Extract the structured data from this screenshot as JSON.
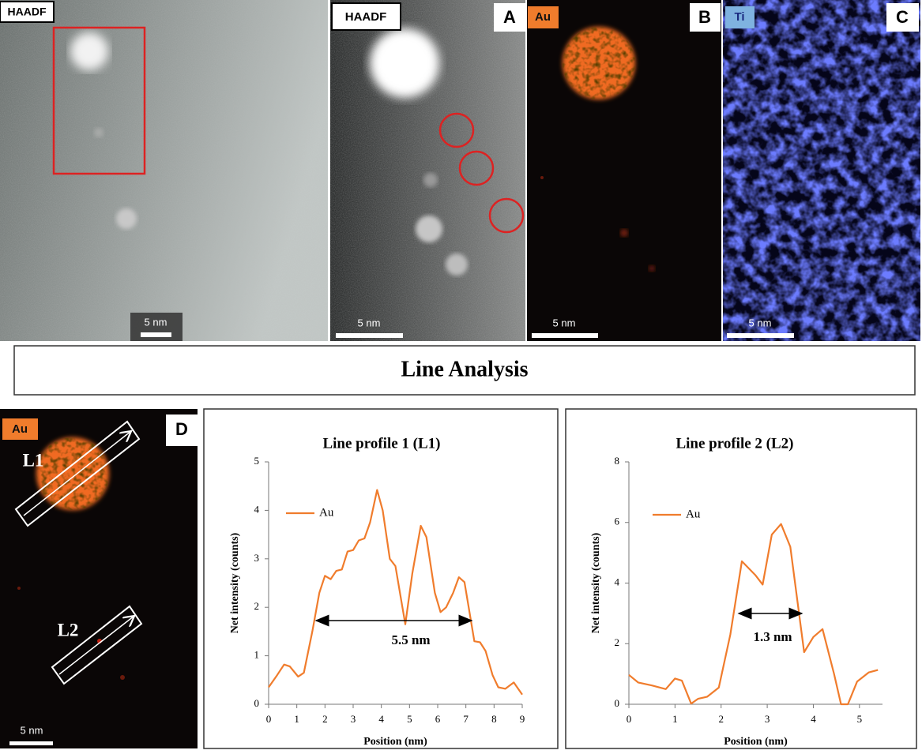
{
  "panels": {
    "overview": {
      "label": "HAADF",
      "scale_bar": "5 nm"
    },
    "a": {
      "letter": "A",
      "label": "HAADF",
      "scale_bar": "5 nm"
    },
    "b": {
      "letter": "B",
      "label": "Au",
      "scale_bar": "5 nm"
    },
    "c": {
      "letter": "C",
      "label": "Ti",
      "scale_bar": "5 nm"
    },
    "d": {
      "letter": "D",
      "label": "Au",
      "scale_bar": "5 nm",
      "lines": [
        "L1",
        "L2"
      ]
    }
  },
  "section_title": "Line Analysis",
  "chart_data": [
    {
      "type": "line",
      "title": "Line profile 1 (L1)",
      "x_label": "Position (nm)",
      "y_label": "Net intensity (counts)",
      "x": [
        0,
        0.3,
        0.55,
        0.75,
        1.05,
        1.25,
        1.55,
        1.8,
        2.0,
        2.2,
        2.4,
        2.6,
        2.8,
        3.0,
        3.2,
        3.4,
        3.6,
        3.85,
        4.05,
        4.3,
        4.5,
        4.85,
        5.1,
        5.4,
        5.6,
        5.9,
        6.1,
        6.3,
        6.55,
        6.75,
        6.95,
        7.3,
        7.5,
        7.7,
        7.95,
        8.15,
        8.4,
        8.7,
        9.0
      ],
      "series": [
        {
          "name": "Au",
          "color": "#f07c2c",
          "values": [
            0.35,
            0.6,
            0.82,
            0.78,
            0.57,
            0.65,
            1.5,
            2.3,
            2.65,
            2.58,
            2.75,
            2.78,
            3.15,
            3.18,
            3.38,
            3.42,
            3.75,
            4.42,
            4.0,
            3.0,
            2.85,
            1.65,
            2.7,
            3.68,
            3.45,
            2.3,
            1.9,
            2.0,
            2.3,
            2.62,
            2.52,
            1.3,
            1.28,
            1.1,
            0.6,
            0.35,
            0.32,
            0.45,
            0.2
          ]
        }
      ],
      "xlim": [
        0,
        9
      ],
      "ylim": [
        0,
        5
      ],
      "xticks": [
        0,
        1,
        2,
        3,
        4,
        5,
        6,
        7,
        8,
        9
      ],
      "yticks": [
        0,
        1,
        2,
        3,
        4,
        5
      ],
      "grid": false,
      "legend": "upper left",
      "annotation": "5.5 nm"
    },
    {
      "type": "line",
      "title": "Line profile 2 (L2)",
      "x_label": "Position (nm)",
      "y_label": "Net intensity (counts)",
      "x": [
        0,
        0.2,
        0.5,
        0.8,
        1.0,
        1.15,
        1.35,
        1.5,
        1.7,
        1.95,
        2.2,
        2.45,
        2.75,
        2.9,
        3.1,
        3.3,
        3.5,
        3.8,
        4.0,
        4.2,
        4.45,
        4.6,
        4.75,
        4.95,
        5.2,
        5.4
      ],
      "series": [
        {
          "name": "Au",
          "color": "#f07c2c",
          "values": [
            0.97,
            0.72,
            0.62,
            0.5,
            0.85,
            0.78,
            0.02,
            0.18,
            0.25,
            0.55,
            2.3,
            4.72,
            4.25,
            3.95,
            5.6,
            5.95,
            5.2,
            1.72,
            2.22,
            2.48,
            1.0,
            0.0,
            0.0,
            0.75,
            1.05,
            1.13
          ]
        }
      ],
      "xlim": [
        0,
        5.5
      ],
      "ylim": [
        0,
        8
      ],
      "xticks": [
        0,
        1,
        2,
        3,
        4,
        5
      ],
      "yticks": [
        0,
        2,
        4,
        6,
        8
      ],
      "grid": false,
      "legend": "upper left",
      "annotation": "1.3 nm"
    }
  ]
}
